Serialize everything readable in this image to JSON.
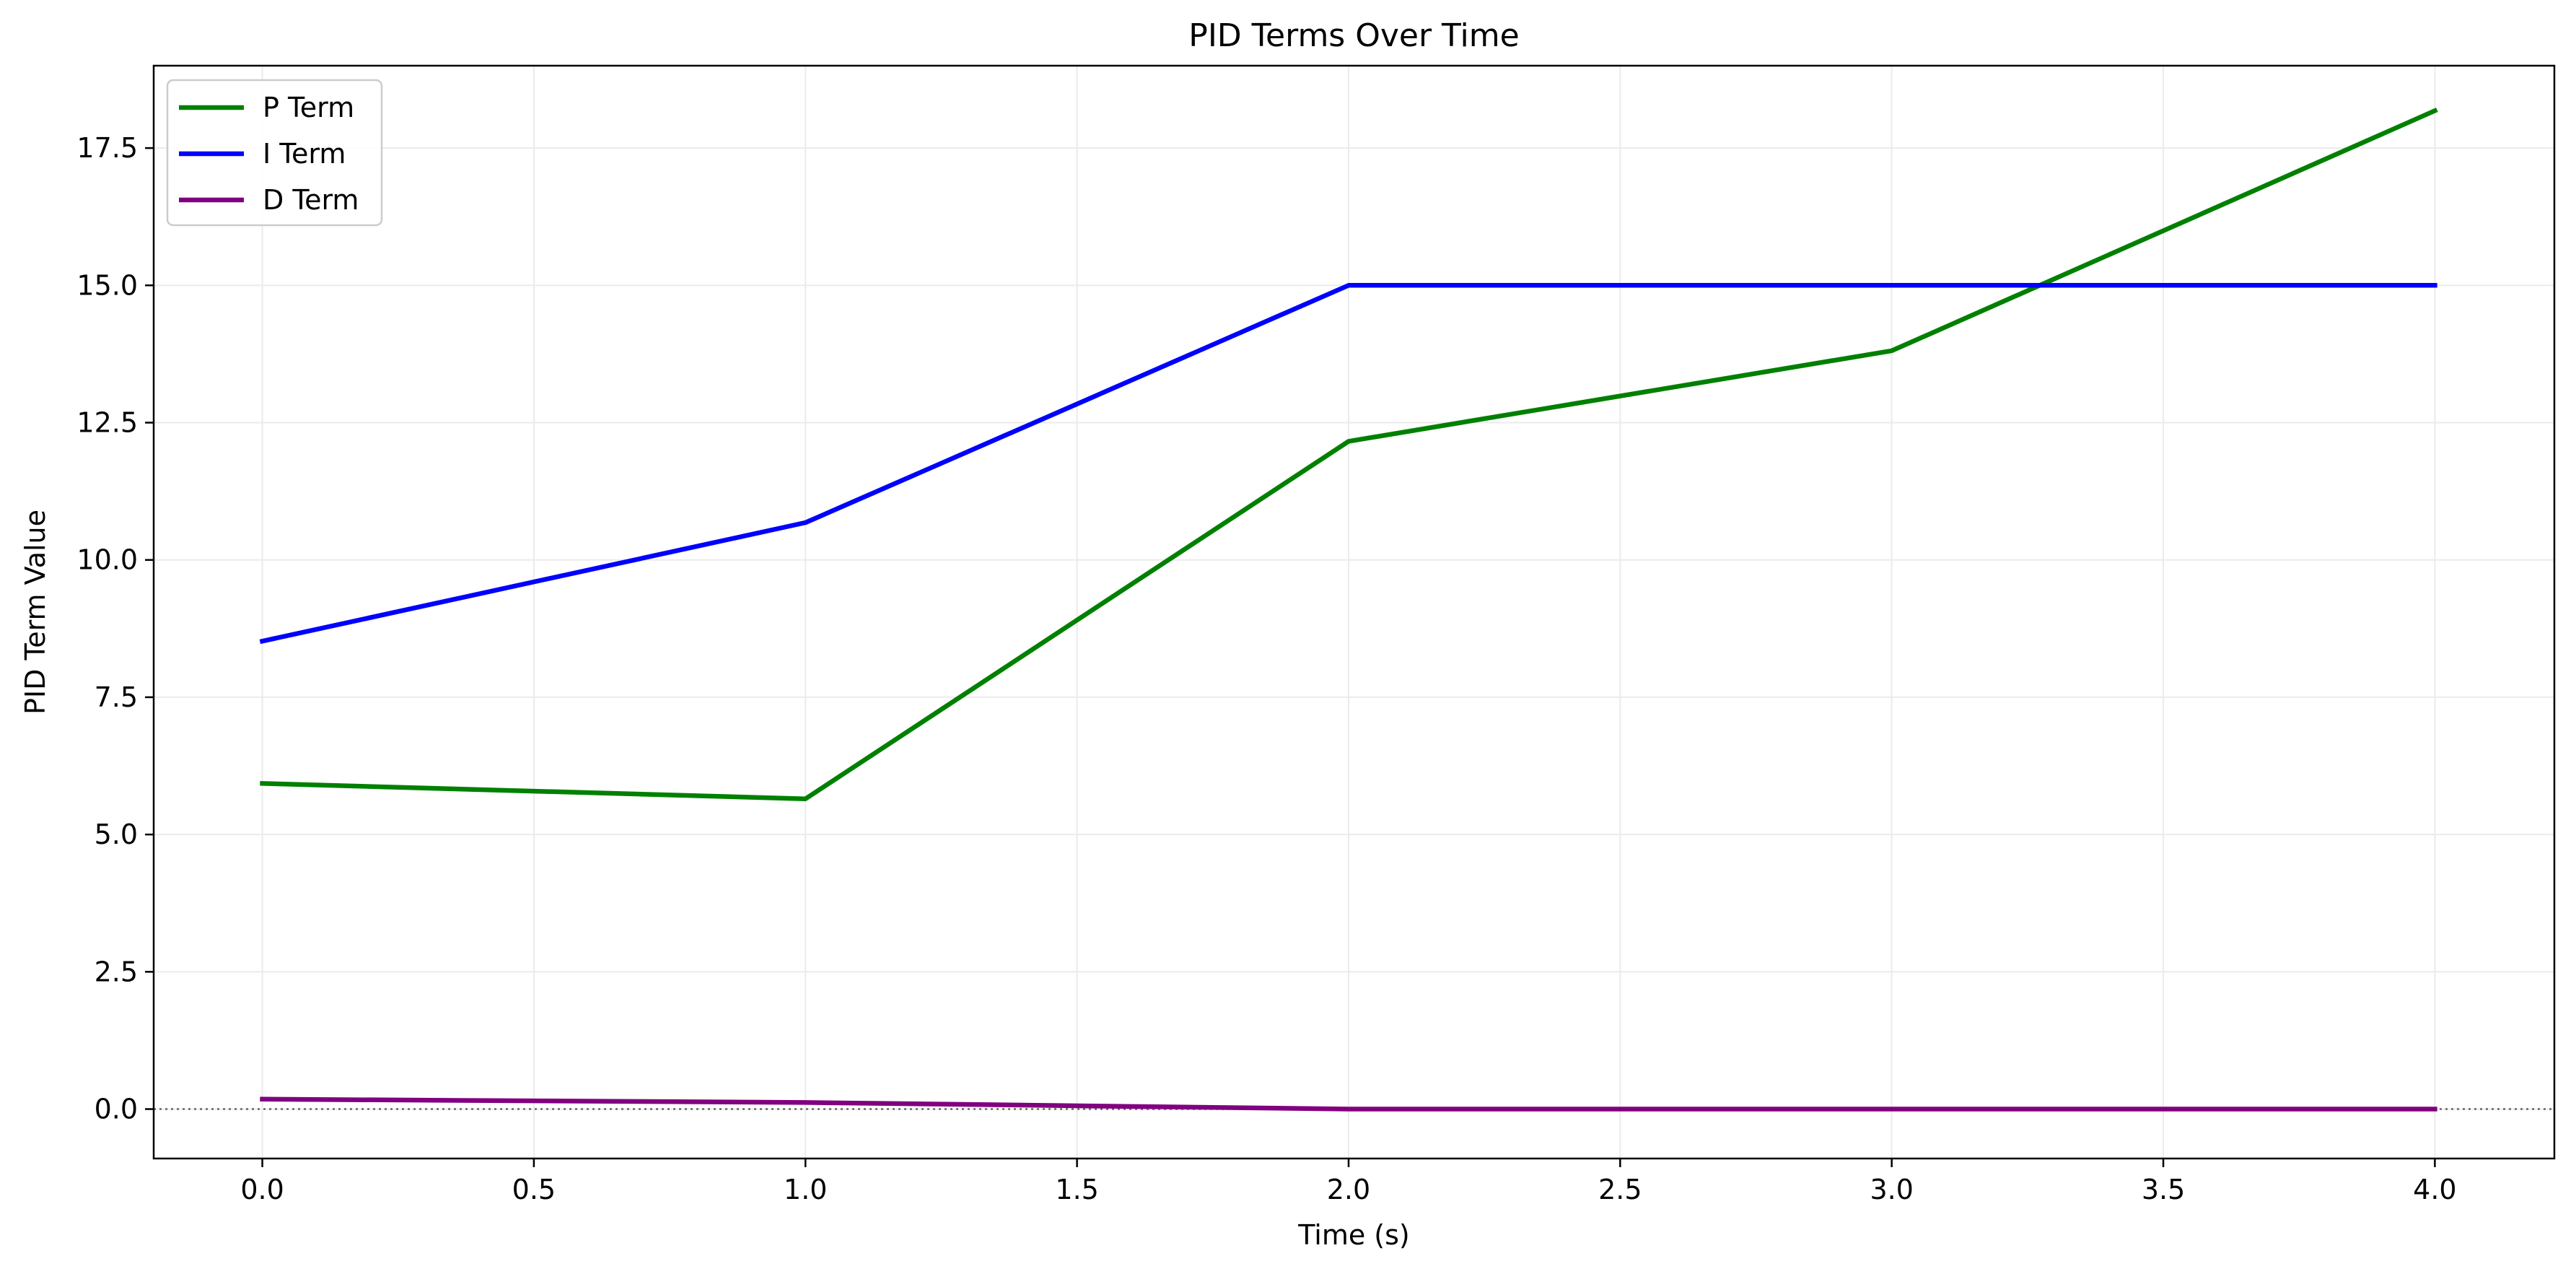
{
  "chart_data": {
    "type": "line",
    "title": "PID Terms Over Time",
    "xlabel": "Time (s)",
    "ylabel": "PID Term Value",
    "xlim": [
      -0.2,
      4.22
    ],
    "ylim": [
      -0.9,
      19.0
    ],
    "xticks": [
      "0.0",
      "0.5",
      "1.0",
      "1.5",
      "2.0",
      "2.5",
      "3.0",
      "3.5",
      "4.0"
    ],
    "yticks": [
      "0.0",
      "2.5",
      "5.0",
      "7.5",
      "10.0",
      "12.5",
      "15.0",
      "17.5"
    ],
    "grid": true,
    "legend_position": "upper-left",
    "zero_reference_line": true,
    "series": [
      {
        "name": "P Term",
        "color": "#008000",
        "x": [
          0.0,
          1.0,
          2.0,
          3.0,
          4.0
        ],
        "y": [
          5.93,
          5.65,
          12.16,
          13.81,
          18.18
        ]
      },
      {
        "name": "I Term",
        "color": "#0000ff",
        "x": [
          0.0,
          1.0,
          2.0,
          3.0,
          4.0
        ],
        "y": [
          8.52,
          10.68,
          15.0,
          15.0,
          15.0
        ]
      },
      {
        "name": "D Term",
        "color": "#800080",
        "x": [
          0.0,
          1.0,
          2.0,
          3.0,
          4.0
        ],
        "y": [
          0.18,
          0.12,
          0.0,
          0.0,
          0.0
        ]
      }
    ]
  }
}
